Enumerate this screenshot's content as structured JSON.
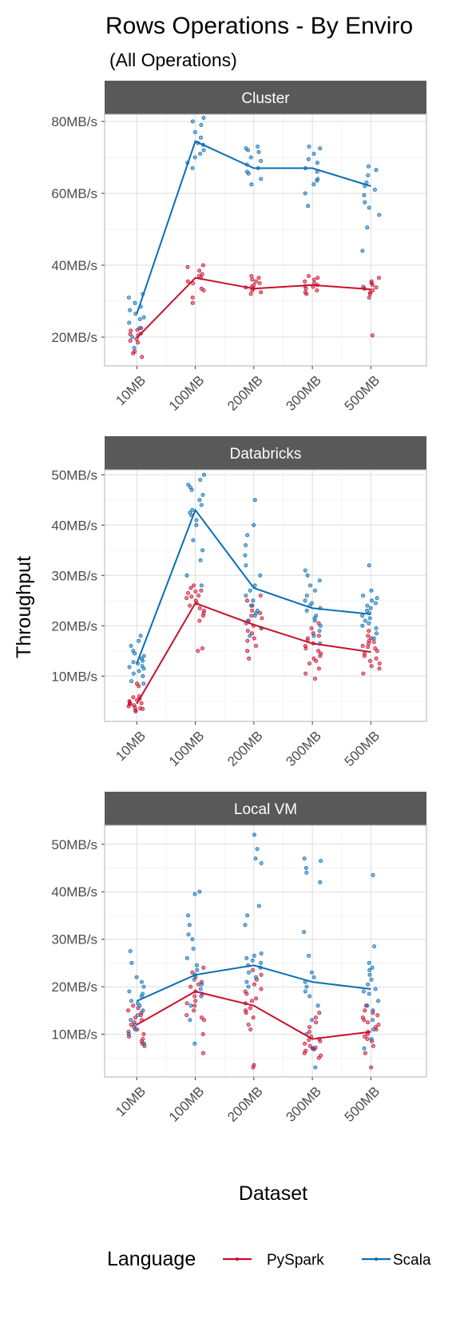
{
  "title": "Rows Operations - By Enviro",
  "subtitle": "(All Operations)",
  "xlabel": "Dataset",
  "ylabel": "Throughput",
  "legend": {
    "title": "Language",
    "items": [
      {
        "label": "PySpark",
        "color": "#c8102e"
      },
      {
        "label": "Scala",
        "color": "#0a6eb4"
      }
    ]
  },
  "chart_data": [
    {
      "type": "line",
      "facet": "Cluster",
      "categories": [
        "10MB",
        "100MB",
        "200MB",
        "300MB",
        "500MB"
      ],
      "ylim": [
        12,
        82
      ],
      "yticks": [
        20,
        40,
        60,
        80
      ],
      "ytick_labels": [
        "20MB/s",
        "40MB/s",
        "60MB/s",
        "80MB/s"
      ],
      "series": [
        {
          "name": "PySpark",
          "color": "#c8102e",
          "means": [
            19.8,
            36.5,
            33.5,
            34.5,
            33.3
          ],
          "points": [
            [
              16.0,
              14.5,
              15.5,
              20.5,
              21.8,
              22.5,
              19.0,
              20.8,
              22.0,
              18.5,
              21.0,
              19.5
            ],
            [
              29.5,
              31.0,
              33.5,
              35.0,
              36.5,
              37.5,
              38.5,
              39.5,
              40.0,
              37.0,
              35.5,
              33.0
            ],
            [
              32.5,
              33.5,
              34.5,
              35.0,
              36.0,
              37.0,
              33.0,
              34.0,
              35.5,
              32.0,
              36.5,
              33.8
            ],
            [
              32.0,
              33.0,
              34.0,
              35.0,
              36.0,
              37.0,
              34.5,
              33.5,
              35.5,
              32.5,
              36.5,
              34.2
            ],
            [
              20.5,
              31.0,
              32.5,
              33.5,
              34.5,
              35.5,
              36.5,
              33.0,
              34.0,
              32.0,
              35.0,
              33.8
            ]
          ]
        },
        {
          "name": "Scala",
          "color": "#0a6eb4",
          "means": [
            26.5,
            74.5,
            67.0,
            67.0,
            62.0
          ],
          "points": [
            [
              17.0,
              20.0,
              22.5,
              24.0,
              25.5,
              26.5,
              27.5,
              28.5,
              29.5,
              31.0,
              32.0,
              25.0
            ],
            [
              67.0,
              70.0,
              71.0,
              72.0,
              73.5,
              74.0,
              75.5,
              77.0,
              79.0,
              80.0,
              81.0,
              68.5
            ],
            [
              62.5,
              64.0,
              65.5,
              67.0,
              68.0,
              69.0,
              70.0,
              71.5,
              72.0,
              72.5,
              73.0,
              66.0
            ],
            [
              56.5,
              60.0,
              62.5,
              64.0,
              66.0,
              67.0,
              68.5,
              69.5,
              71.0,
              72.5,
              73.0,
              63.5
            ],
            [
              44.0,
              50.5,
              54.0,
              56.0,
              57.5,
              59.5,
              61.0,
              63.0,
              65.0,
              66.5,
              67.5,
              62.0
            ]
          ]
        }
      ]
    },
    {
      "type": "line",
      "facet": "Databricks",
      "categories": [
        "10MB",
        "100MB",
        "200MB",
        "300MB",
        "500MB"
      ],
      "ylim": [
        1,
        51
      ],
      "yticks": [
        10,
        20,
        30,
        40,
        50
      ],
      "ytick_labels": [
        "10MB/s",
        "20MB/s",
        "30MB/s",
        "40MB/s",
        "50MB/s"
      ],
      "series": [
        {
          "name": "PySpark",
          "color": "#c8102e",
          "means": [
            4.5,
            24.5,
            20.2,
            16.5,
            14.8
          ],
          "points": [
            [
              3.0,
              3.5,
              4.0,
              4.5,
              5.0,
              5.5,
              6.0,
              3.8,
              4.2,
              4.8,
              5.2,
              3.2,
              4.6,
              5.8,
              4.4,
              3.6,
              8.0,
              8.5
            ],
            [
              15.0,
              15.5,
              21.0,
              22.0,
              23.0,
              24.0,
              24.5,
              25.0,
              25.5,
              26.0,
              26.5,
              27.0,
              27.5,
              28.0,
              22.5,
              23.5,
              25.8,
              26.8
            ],
            [
              13.5,
              15.0,
              16.0,
              17.5,
              18.5,
              19.5,
              20.0,
              21.0,
              22.0,
              23.0,
              24.0,
              25.0,
              26.0,
              19.0,
              20.5,
              21.5,
              17.0,
              22.5
            ],
            [
              9.5,
              10.5,
              11.5,
              12.5,
              13.5,
              14.5,
              15.5,
              16.5,
              17.5,
              18.5,
              19.5,
              20.5,
              14.0,
              16.0,
              18.0,
              13.0,
              15.0,
              17.0
            ],
            [
              10.5,
              11.5,
              12.0,
              13.0,
              13.5,
              14.0,
              15.0,
              15.5,
              16.0,
              16.5,
              17.0,
              17.5,
              18.0,
              19.0,
              14.5,
              12.5,
              15.8,
              16.8
            ]
          ]
        },
        {
          "name": "Scala",
          "color": "#0a6eb4",
          "means": [
            12.5,
            43.0,
            27.5,
            23.5,
            22.3
          ],
          "points": [
            [
              8.5,
              9.0,
              10.0,
              10.5,
              11.0,
              11.5,
              12.0,
              12.5,
              13.0,
              13.5,
              14.0,
              14.5,
              15.0,
              16.0,
              17.0,
              18.0,
              11.8,
              12.8
            ],
            [
              28.0,
              30.0,
              33.0,
              35.0,
              37.0,
              40.0,
              41.0,
              42.0,
              42.5,
              43.0,
              44.0,
              45.0,
              46.0,
              47.0,
              48.0,
              49.0,
              50.0,
              47.5
            ],
            [
              18.0,
              19.5,
              21.0,
              22.0,
              23.0,
              24.0,
              26.0,
              28.0,
              30.0,
              32.0,
              34.0,
              36.0,
              38.0,
              40.0,
              45.0,
              22.5,
              25.0,
              27.0
            ],
            [
              16.5,
              18.0,
              19.0,
              20.0,
              21.0,
              22.0,
              23.0,
              24.0,
              25.0,
              26.0,
              27.0,
              28.0,
              29.0,
              30.0,
              31.0,
              21.5,
              23.5,
              24.5
            ],
            [
              17.5,
              18.5,
              19.5,
              20.5,
              21.0,
              22.0,
              22.5,
              23.0,
              24.0,
              24.5,
              25.0,
              26.0,
              27.0,
              32.0,
              20.0,
              21.5,
              23.5,
              25.5
            ]
          ]
        }
      ]
    },
    {
      "type": "line",
      "facet": "Local VM",
      "categories": [
        "10MB",
        "100MB",
        "200MB",
        "300MB",
        "500MB"
      ],
      "ylim": [
        1,
        54
      ],
      "yticks": [
        10,
        20,
        30,
        40,
        50
      ],
      "ytick_labels": [
        "10MB/s",
        "20MB/s",
        "30MB/s",
        "40MB/s",
        "50MB/s"
      ],
      "series": [
        {
          "name": "PySpark",
          "color": "#c8102e",
          "means": [
            12.0,
            19.0,
            16.0,
            9.0,
            10.5
          ],
          "points": [
            [
              7.5,
              8.0,
              9.0,
              10.0,
              11.0,
              12.0,
              13.0,
              14.0,
              14.5,
              15.0,
              15.5,
              16.0,
              9.5,
              12.5,
              13.5,
              10.5,
              8.5,
              11.5
            ],
            [
              6.0,
              10.0,
              13.0,
              14.0,
              15.0,
              16.0,
              17.0,
              18.0,
              19.0,
              20.0,
              21.0,
              22.0,
              23.0,
              24.0,
              16.5,
              18.5,
              20.5,
              13.5
            ],
            [
              3.0,
              3.5,
              11.0,
              12.0,
              13.5,
              14.5,
              15.5,
              16.5,
              17.5,
              18.5,
              19.5,
              20.5,
              21.5,
              22.5,
              23.5,
              15.0,
              17.0,
              19.0
            ],
            [
              5.0,
              5.5,
              6.0,
              6.5,
              7.0,
              7.5,
              8.0,
              8.5,
              9.0,
              9.5,
              10.5,
              11.5,
              12.5,
              13.5,
              14.5,
              7.2,
              8.8,
              6.8
            ],
            [
              3.0,
              6.0,
              7.5,
              8.5,
              9.5,
              10.5,
              11.0,
              12.0,
              12.5,
              13.0,
              14.0,
              15.0,
              16.0,
              11.5,
              13.5,
              10.0,
              9.0,
              14.5
            ]
          ]
        },
        {
          "name": "Scala",
          "color": "#0a6eb4",
          "means": [
            17.0,
            22.5,
            24.5,
            21.0,
            19.5
          ],
          "points": [
            [
              8.0,
              10.0,
              12.0,
              13.0,
              14.0,
              15.0,
              16.0,
              17.0,
              18.0,
              19.0,
              20.0,
              21.0,
              22.0,
              25.0,
              27.5,
              16.5,
              18.5,
              11.0
            ],
            [
              8.0,
              13.0,
              16.0,
              18.0,
              19.5,
              20.5,
              21.5,
              22.5,
              23.5,
              24.5,
              26.0,
              28.0,
              30.0,
              31.0,
              33.0,
              35.0,
              39.5,
              40.0
            ],
            [
              20.0,
              21.0,
              22.0,
              23.0,
              24.0,
              25.0,
              25.5,
              26.0,
              26.5,
              27.0,
              33.0,
              35.0,
              37.0,
              46.0,
              47.0,
              49.0,
              52.0,
              24.5
            ],
            [
              3.0,
              7.0,
              10.0,
              13.0,
              16.0,
              18.0,
              20.0,
              21.0,
              22.0,
              23.0,
              26.5,
              31.5,
              42.0,
              44.0,
              45.0,
              46.5,
              47.0,
              19.0
            ],
            [
              7.0,
              9.0,
              11.0,
              13.0,
              15.0,
              17.0,
              18.5,
              19.5,
              20.5,
              21.5,
              22.5,
              23.5,
              24.0,
              25.0,
              28.5,
              43.5,
              16.0,
              19.0
            ]
          ]
        }
      ]
    }
  ]
}
